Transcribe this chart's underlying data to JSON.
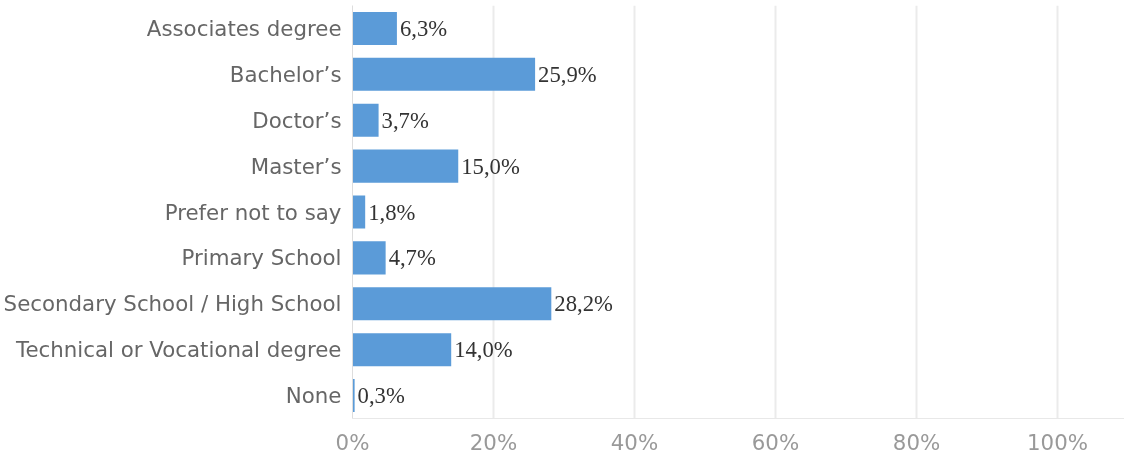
{
  "chart_data": {
    "type": "bar",
    "orientation": "horizontal",
    "categories": [
      "Associates degree",
      "Bachelor’s",
      "Doctor’s",
      "Master’s",
      "Prefer not to say",
      "Primary School",
      "Secondary School / High School",
      "Technical or Vocational degree",
      "None"
    ],
    "values": [
      6.3,
      25.9,
      3.7,
      15.0,
      1.8,
      4.7,
      28.2,
      14.0,
      0.3
    ],
    "value_labels": [
      "6,3%",
      "25,9%",
      "3,7%",
      "15,0%",
      "1,8%",
      "4,7%",
      "28,2%",
      "14,0%",
      "0,3%"
    ],
    "color": "#5b9bd8",
    "xlim": [
      0,
      109.5
    ],
    "xticks": [
      {
        "value": 0,
        "label": "0%"
      },
      {
        "value": 20,
        "label": "20%"
      },
      {
        "value": 40,
        "label": "40%"
      },
      {
        "value": 60,
        "label": "60%"
      },
      {
        "value": 80,
        "label": "80%"
      },
      {
        "value": 100,
        "label": "100%"
      }
    ],
    "grid": "x"
  }
}
